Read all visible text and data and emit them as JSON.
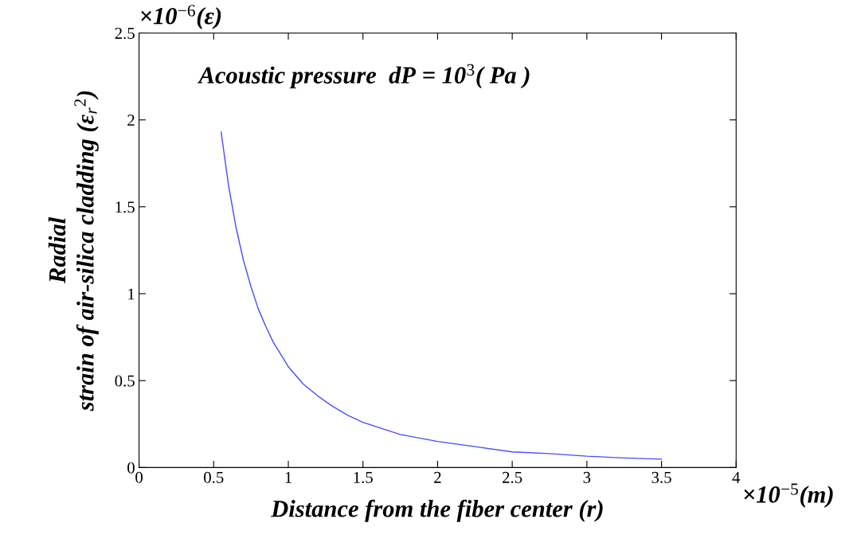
{
  "chart_data": {
    "type": "line",
    "xlabel": "Distance from the fiber center (r)",
    "ylabel": "Radial\nstrain of air-silica cladding (ε$_{r}$$^{2}$)",
    "annotations": [
      "×10$^{−6}$(ε)",
      "×10$^{−5}$(m)",
      "Acoustic pressure  dP = 10$^{3}$( Pa )"
    ],
    "x": [
      0.55,
      0.6,
      0.65,
      0.7,
      0.75,
      0.8,
      0.85,
      0.9,
      1.0,
      1.1,
      1.2,
      1.3,
      1.4,
      1.5,
      1.75,
      2.0,
      2.25,
      2.5,
      2.75,
      3.0,
      3.25,
      3.5
    ],
    "series": [
      {
        "color": "#4a4aff",
        "values": [
          1.93,
          1.62,
          1.38,
          1.19,
          1.04,
          0.91,
          0.81,
          0.72,
          0.58,
          0.48,
          0.41,
          0.35,
          0.3,
          0.26,
          0.19,
          0.15,
          0.12,
          0.09,
          0.08,
          0.065,
          0.055,
          0.048
        ]
      }
    ],
    "xlim": [
      0,
      4
    ],
    "xticks": [
      0,
      0.5,
      1,
      1.5,
      2,
      2.5,
      3,
      3.5,
      4
    ],
    "ylim": [
      0,
      2.5
    ],
    "yticks": [
      0,
      0.5,
      1,
      1.5,
      2,
      2.5
    ],
    "grid": false,
    "marker": "none",
    "line_style": "solid"
  }
}
